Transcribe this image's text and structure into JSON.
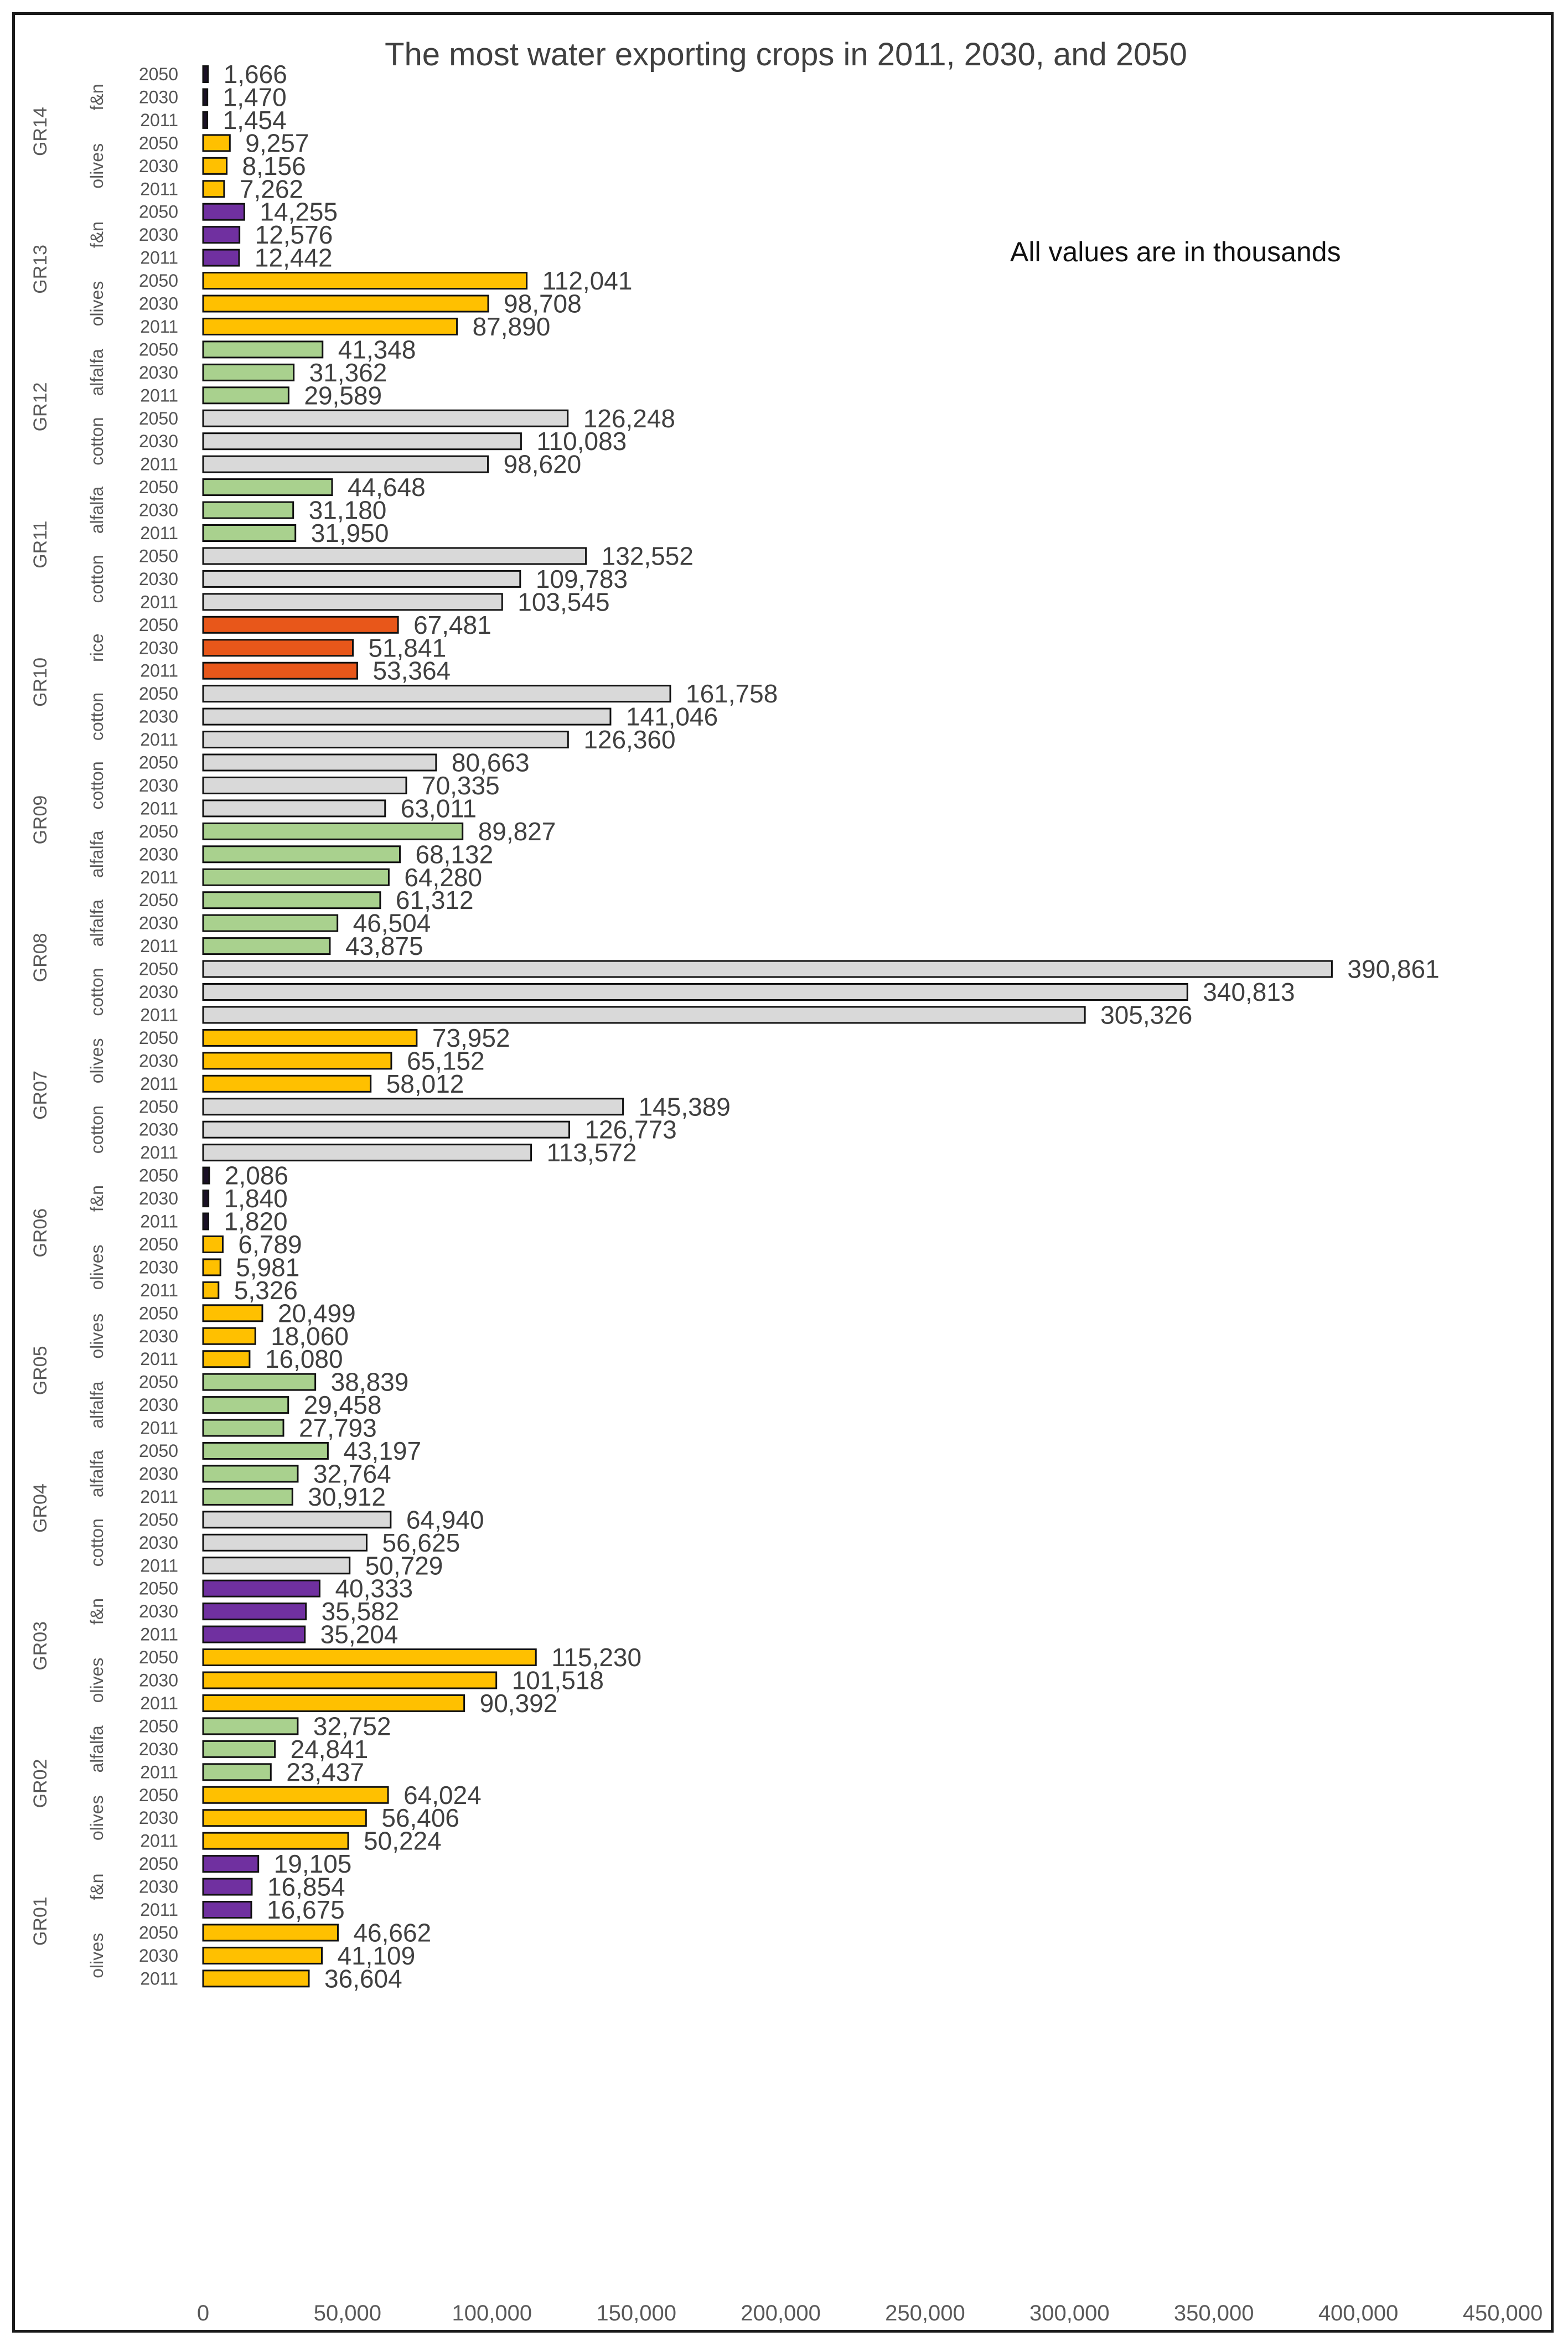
{
  "chart_data": {
    "type": "bar",
    "orientation": "horizontal",
    "title": "The most water exporting crops in 2011, 2030, and 2050",
    "annotation": "All values are in thousands",
    "xlim": [
      0,
      450000
    ],
    "xticks": [
      0,
      50000,
      100000,
      150000,
      200000,
      250000,
      300000,
      350000,
      400000,
      450000
    ],
    "xtick_labels": [
      "0",
      "50,000",
      "100,000",
      "150,000",
      "200,000",
      "250,000",
      "300,000",
      "350,000",
      "400,000",
      "450,000"
    ],
    "colors": {
      "f&n": "#7030A0",
      "olives": "#FFC000",
      "alfalfa": "#A9D18E",
      "cotton": "#D9D9D9",
      "rice": "#E8571A",
      "f&n_dark": "#1A1026"
    },
    "groups": [
      {
        "name": "GR14",
        "crops": [
          {
            "name": "f&n",
            "color_key": "f&n_dark",
            "bars": [
              {
                "year": "2050",
                "value": 1666,
                "label": "1,666"
              },
              {
                "year": "2030",
                "value": 1470,
                "label": "1,470"
              },
              {
                "year": "2011",
                "value": 1454,
                "label": "1,454"
              }
            ]
          },
          {
            "name": "olives",
            "color_key": "olives",
            "bars": [
              {
                "year": "2050",
                "value": 9257,
                "label": "9,257"
              },
              {
                "year": "2030",
                "value": 8156,
                "label": "8,156"
              },
              {
                "year": "2011",
                "value": 7262,
                "label": "7,262"
              }
            ]
          }
        ]
      },
      {
        "name": "GR13",
        "crops": [
          {
            "name": "f&n",
            "color_key": "f&n",
            "bars": [
              {
                "year": "2050",
                "value": 14255,
                "label": "14,255"
              },
              {
                "year": "2030",
                "value": 12576,
                "label": "12,576"
              },
              {
                "year": "2011",
                "value": 12442,
                "label": "12,442"
              }
            ]
          },
          {
            "name": "olives",
            "color_key": "olives",
            "bars": [
              {
                "year": "2050",
                "value": 112041,
                "label": "112,041"
              },
              {
                "year": "2030",
                "value": 98708,
                "label": "98,708"
              },
              {
                "year": "2011",
                "value": 87890,
                "label": "87,890"
              }
            ]
          }
        ]
      },
      {
        "name": "GR12",
        "crops": [
          {
            "name": "alfalfa",
            "color_key": "alfalfa",
            "bars": [
              {
                "year": "2050",
                "value": 41348,
                "label": "41,348"
              },
              {
                "year": "2030",
                "value": 31362,
                "label": "31,362"
              },
              {
                "year": "2011",
                "value": 29589,
                "label": "29,589"
              }
            ]
          },
          {
            "name": "cotton",
            "color_key": "cotton",
            "bars": [
              {
                "year": "2050",
                "value": 126248,
                "label": "126,248"
              },
              {
                "year": "2030",
                "value": 110083,
                "label": "110,083"
              },
              {
                "year": "2011",
                "value": 98620,
                "label": "98,620"
              }
            ]
          }
        ]
      },
      {
        "name": "GR11",
        "crops": [
          {
            "name": "alfalfa",
            "color_key": "alfalfa",
            "bars": [
              {
                "year": "2050",
                "value": 44648,
                "label": "44,648"
              },
              {
                "year": "2030",
                "value": 31180,
                "label": "31,180"
              },
              {
                "year": "2011",
                "value": 31950,
                "label": "31,950"
              }
            ]
          },
          {
            "name": "cotton",
            "color_key": "cotton",
            "bars": [
              {
                "year": "2050",
                "value": 132552,
                "label": "132,552"
              },
              {
                "year": "2030",
                "value": 109783,
                "label": "109,783"
              },
              {
                "year": "2011",
                "value": 103545,
                "label": "103,545"
              }
            ]
          }
        ]
      },
      {
        "name": "GR10",
        "crops": [
          {
            "name": "rice",
            "color_key": "rice",
            "bars": [
              {
                "year": "2050",
                "value": 67481,
                "label": "67,481"
              },
              {
                "year": "2030",
                "value": 51841,
                "label": "51,841"
              },
              {
                "year": "2011",
                "value": 53364,
                "label": "53,364"
              }
            ]
          },
          {
            "name": "cotton",
            "color_key": "cotton",
            "bars": [
              {
                "year": "2050",
                "value": 161758,
                "label": "161,758"
              },
              {
                "year": "2030",
                "value": 141046,
                "label": "141,046"
              },
              {
                "year": "2011",
                "value": 126360,
                "label": "126,360"
              }
            ]
          }
        ]
      },
      {
        "name": "GR09",
        "crops": [
          {
            "name": "cotton",
            "color_key": "cotton",
            "bars": [
              {
                "year": "2050",
                "value": 80663,
                "label": "80,663"
              },
              {
                "year": "2030",
                "value": 70335,
                "label": "70,335"
              },
              {
                "year": "2011",
                "value": 63011,
                "label": "63,011"
              }
            ]
          },
          {
            "name": "alfalfa",
            "color_key": "alfalfa",
            "bars": [
              {
                "year": "2050",
                "value": 89827,
                "label": "89,827"
              },
              {
                "year": "2030",
                "value": 68132,
                "label": "68,132"
              },
              {
                "year": "2011",
                "value": 64280,
                "label": "64,280"
              }
            ]
          }
        ]
      },
      {
        "name": "GR08",
        "crops": [
          {
            "name": "alfalfa",
            "color_key": "alfalfa",
            "bars": [
              {
                "year": "2050",
                "value": 61312,
                "label": "61,312"
              },
              {
                "year": "2030",
                "value": 46504,
                "label": "46,504"
              },
              {
                "year": "2011",
                "value": 43875,
                "label": "43,875"
              }
            ]
          },
          {
            "name": "cotton",
            "color_key": "cotton",
            "bars": [
              {
                "year": "2050",
                "value": 390861,
                "label": "390,861"
              },
              {
                "year": "2030",
                "value": 340813,
                "label": "340,813"
              },
              {
                "year": "2011",
                "value": 305326,
                "label": "305,326"
              }
            ]
          }
        ]
      },
      {
        "name": "GR07",
        "crops": [
          {
            "name": "olives",
            "color_key": "olives",
            "bars": [
              {
                "year": "2050",
                "value": 73952,
                "label": "73,952"
              },
              {
                "year": "2030",
                "value": 65152,
                "label": "65,152"
              },
              {
                "year": "2011",
                "value": 58012,
                "label": "58,012"
              }
            ]
          },
          {
            "name": "cotton",
            "color_key": "cotton",
            "bars": [
              {
                "year": "2050",
                "value": 145389,
                "label": "145,389"
              },
              {
                "year": "2030",
                "value": 126773,
                "label": "126,773"
              },
              {
                "year": "2011",
                "value": 113572,
                "label": "113,572"
              }
            ]
          }
        ]
      },
      {
        "name": "GR06",
        "crops": [
          {
            "name": "f&n",
            "color_key": "f&n_dark",
            "bars": [
              {
                "year": "2050",
                "value": 2086,
                "label": "2,086"
              },
              {
                "year": "2030",
                "value": 1840,
                "label": "1,840"
              },
              {
                "year": "2011",
                "value": 1820,
                "label": "1,820"
              }
            ]
          },
          {
            "name": "olives",
            "color_key": "olives",
            "bars": [
              {
                "year": "2050",
                "value": 6789,
                "label": "6,789"
              },
              {
                "year": "2030",
                "value": 5981,
                "label": "5,981"
              },
              {
                "year": "2011",
                "value": 5326,
                "label": "5,326"
              }
            ]
          }
        ]
      },
      {
        "name": "GR05",
        "crops": [
          {
            "name": "olives",
            "color_key": "olives",
            "bars": [
              {
                "year": "2050",
                "value": 20499,
                "label": "20,499"
              },
              {
                "year": "2030",
                "value": 18060,
                "label": "18,060"
              },
              {
                "year": "2011",
                "value": 16080,
                "label": "16,080"
              }
            ]
          },
          {
            "name": "alfalfa",
            "color_key": "alfalfa",
            "bars": [
              {
                "year": "2050",
                "value": 38839,
                "label": "38,839"
              },
              {
                "year": "2030",
                "value": 29458,
                "label": "29,458"
              },
              {
                "year": "2011",
                "value": 27793,
                "label": "27,793"
              }
            ]
          }
        ]
      },
      {
        "name": "GR04",
        "crops": [
          {
            "name": "alfalfa",
            "color_key": "alfalfa",
            "bars": [
              {
                "year": "2050",
                "value": 43197,
                "label": "43,197"
              },
              {
                "year": "2030",
                "value": 32764,
                "label": "32,764"
              },
              {
                "year": "2011",
                "value": 30912,
                "label": "30,912"
              }
            ]
          },
          {
            "name": "cotton",
            "color_key": "cotton",
            "bars": [
              {
                "year": "2050",
                "value": 64940,
                "label": "64,940"
              },
              {
                "year": "2030",
                "value": 56625,
                "label": "56,625"
              },
              {
                "year": "2011",
                "value": 50729,
                "label": "50,729"
              }
            ]
          }
        ]
      },
      {
        "name": "GR03",
        "crops": [
          {
            "name": "f&n",
            "color_key": "f&n",
            "bars": [
              {
                "year": "2050",
                "value": 40333,
                "label": "40,333"
              },
              {
                "year": "2030",
                "value": 35582,
                "label": "35,582"
              },
              {
                "year": "2011",
                "value": 35204,
                "label": "35,204"
              }
            ]
          },
          {
            "name": "olives",
            "color_key": "olives",
            "bars": [
              {
                "year": "2050",
                "value": 115230,
                "label": "115,230"
              },
              {
                "year": "2030",
                "value": 101518,
                "label": "101,518"
              },
              {
                "year": "2011",
                "value": 90392,
                "label": "90,392"
              }
            ]
          }
        ]
      },
      {
        "name": "GR02",
        "crops": [
          {
            "name": "alfalfa",
            "color_key": "alfalfa",
            "bars": [
              {
                "year": "2050",
                "value": 32752,
                "label": "32,752"
              },
              {
                "year": "2030",
                "value": 24841,
                "label": "24,841"
              },
              {
                "year": "2011",
                "value": 23437,
                "label": "23,437"
              }
            ]
          },
          {
            "name": "olives",
            "color_key": "olives",
            "bars": [
              {
                "year": "2050",
                "value": 64024,
                "label": "64,024"
              },
              {
                "year": "2030",
                "value": 56406,
                "label": "56,406"
              },
              {
                "year": "2011",
                "value": 50224,
                "label": "50,224"
              }
            ]
          }
        ]
      },
      {
        "name": "GR01",
        "crops": [
          {
            "name": "f&n",
            "color_key": "f&n",
            "bars": [
              {
                "year": "2050",
                "value": 19105,
                "label": "19,105"
              },
              {
                "year": "2030",
                "value": 16854,
                "label": "16,854"
              },
              {
                "year": "2011",
                "value": 16675,
                "label": "16,675"
              }
            ]
          },
          {
            "name": "olives",
            "color_key": "olives",
            "bars": [
              {
                "year": "2050",
                "value": 46662,
                "label": "46,662"
              },
              {
                "year": "2030",
                "value": 41109,
                "label": "41,109"
              },
              {
                "year": "2011",
                "value": 36604,
                "label": "36,604"
              }
            ]
          }
        ]
      }
    ]
  }
}
